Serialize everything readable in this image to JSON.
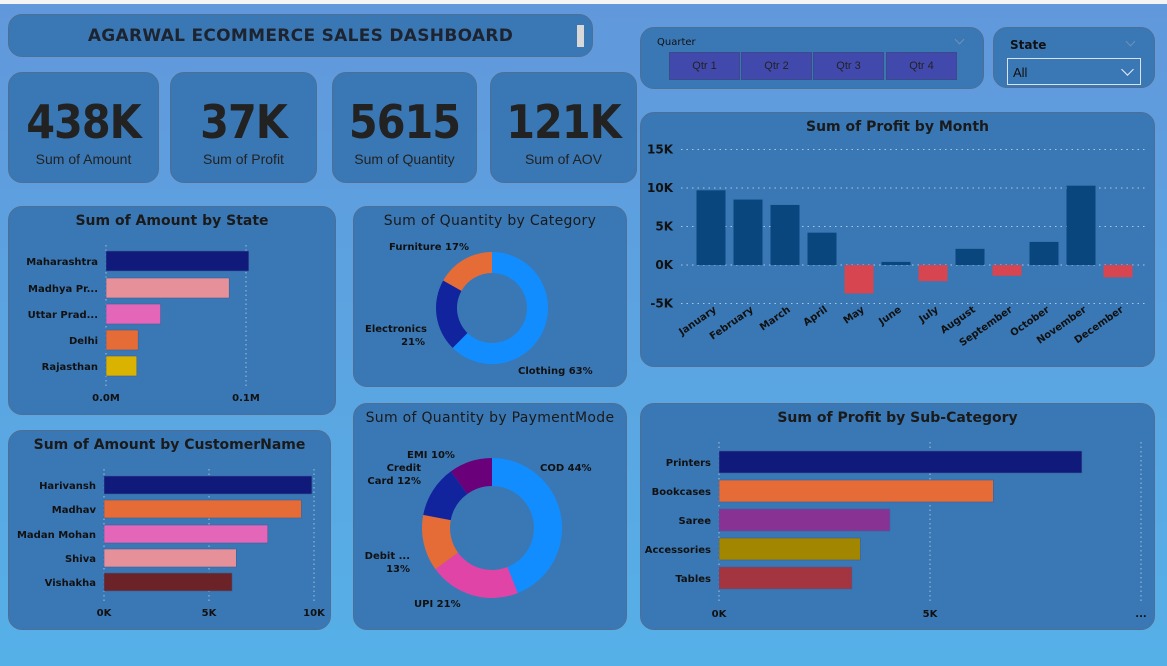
{
  "title": "AGARWAL ECOMMERCE SALES DASHBOARD",
  "kpis": [
    {
      "value": "438K",
      "label": "Sum of Amount"
    },
    {
      "value": "37K",
      "label": "Sum of Profit"
    },
    {
      "value": "5615",
      "label": "Sum of Quantity"
    },
    {
      "value": "121K",
      "label": "Sum of AOV"
    }
  ],
  "quarter_slicer": {
    "title": "Quarter",
    "options": [
      "Qtr 1",
      "Qtr 2",
      "Qtr 3",
      "Qtr 4"
    ],
    "button_color": "#4249ad"
  },
  "state_slicer": {
    "title": "State",
    "selected": "All"
  },
  "chart_data": [
    {
      "id": "state",
      "type": "bar",
      "orientation": "horizontal",
      "title": "Sum of Amount by State",
      "categories": [
        "Maharashtra",
        "Madhya Pr...",
        "Uttar Prad...",
        "Delhi",
        "Rajasthan"
      ],
      "values": [
        0.102,
        0.088,
        0.039,
        0.023,
        0.022
      ],
      "colors": [
        "#0f1a7a",
        "#e6919a",
        "#e366b8",
        "#e66c37",
        "#d9b300"
      ],
      "ticks": [
        {
          "v": 0,
          "label": "0.0M"
        },
        {
          "v": 0.1,
          "label": "0.1M"
        }
      ],
      "xlim": [
        0,
        0.1
      ],
      "unit": "M",
      "grid": true
    },
    {
      "id": "customer",
      "type": "bar",
      "orientation": "horizontal",
      "title": "Sum of Amount by CustomerName",
      "categories": [
        "Harivansh",
        "Madhav",
        "Madan Mohan",
        "Shiva",
        "Vishakha"
      ],
      "values": [
        9.9,
        9.4,
        7.8,
        6.3,
        6.1
      ],
      "colors": [
        "#0f1a7a",
        "#e66c37",
        "#e366b8",
        "#e6919a",
        "#6b2327"
      ],
      "ticks": [
        {
          "v": 0,
          "label": "0K"
        },
        {
          "v": 5,
          "label": "5K"
        },
        {
          "v": 10,
          "label": "10K"
        }
      ],
      "xlim": [
        0,
        10
      ],
      "unit": "K",
      "grid": true
    },
    {
      "id": "category",
      "type": "pie",
      "donut": true,
      "title": "Sum of Quantity by Category",
      "categories": [
        "Clothing",
        "Electronics",
        "Furniture"
      ],
      "values": [
        63,
        21,
        17
      ],
      "labels": [
        "Clothing 63%",
        "Electronics 21%",
        "Furniture 17%"
      ],
      "colors": [
        "#118dff",
        "#12239e",
        "#e66c37"
      ]
    },
    {
      "id": "payment",
      "type": "pie",
      "donut": true,
      "title": "Sum of Quantity by PaymentMode",
      "categories": [
        "COD",
        "UPI",
        "Debit ...",
        "Credit Card",
        "EMI"
      ],
      "values": [
        44,
        21,
        13,
        12,
        10
      ],
      "labels": [
        "COD 44%",
        "UPI 21%",
        "Debit ... 13%",
        "Credit Card 12%",
        "EMI 10%"
      ],
      "colors": [
        "#118dff",
        "#e044a7",
        "#e66c37",
        "#12239e",
        "#6b007b"
      ]
    },
    {
      "id": "month",
      "type": "bar",
      "orientation": "vertical",
      "title": "Sum of Profit by Month",
      "categories": [
        "January",
        "February",
        "March",
        "April",
        "May",
        "June",
        "July",
        "August",
        "September",
        "October",
        "November",
        "December"
      ],
      "values": [
        9.7,
        8.5,
        7.8,
        4.2,
        -3.7,
        0.4,
        -2.1,
        2.1,
        -1.4,
        3.0,
        10.3,
        -1.6
      ],
      "positive_color": "#0a467e",
      "negative_color": "#d64550",
      "ticks": [
        {
          "v": 15,
          "label": "15K"
        },
        {
          "v": 10,
          "label": "10K"
        },
        {
          "v": 5,
          "label": "5K"
        },
        {
          "v": 0,
          "label": "0K"
        },
        {
          "v": -5,
          "label": "-5K"
        }
      ],
      "ylim": [
        -5,
        15
      ],
      "unit": "K",
      "grid": true
    },
    {
      "id": "subcat",
      "type": "bar",
      "orientation": "horizontal",
      "title": "Sum of Profit by Sub-Category",
      "categories": [
        "Printers",
        "Bookcases",
        "Saree",
        "Accessories",
        "Tables"
      ],
      "values": [
        8.6,
        6.5,
        4.05,
        3.35,
        3.15
      ],
      "colors": [
        "#0f1a7a",
        "#e66c37",
        "#883393",
        "#a38600",
        "#a33540"
      ],
      "ticks": [
        {
          "v": 0,
          "label": "0K"
        },
        {
          "v": 5,
          "label": "5K"
        },
        {
          "v": 10,
          "label": "..."
        }
      ],
      "xlim": [
        0,
        10
      ],
      "unit": "K",
      "grid": true
    }
  ]
}
